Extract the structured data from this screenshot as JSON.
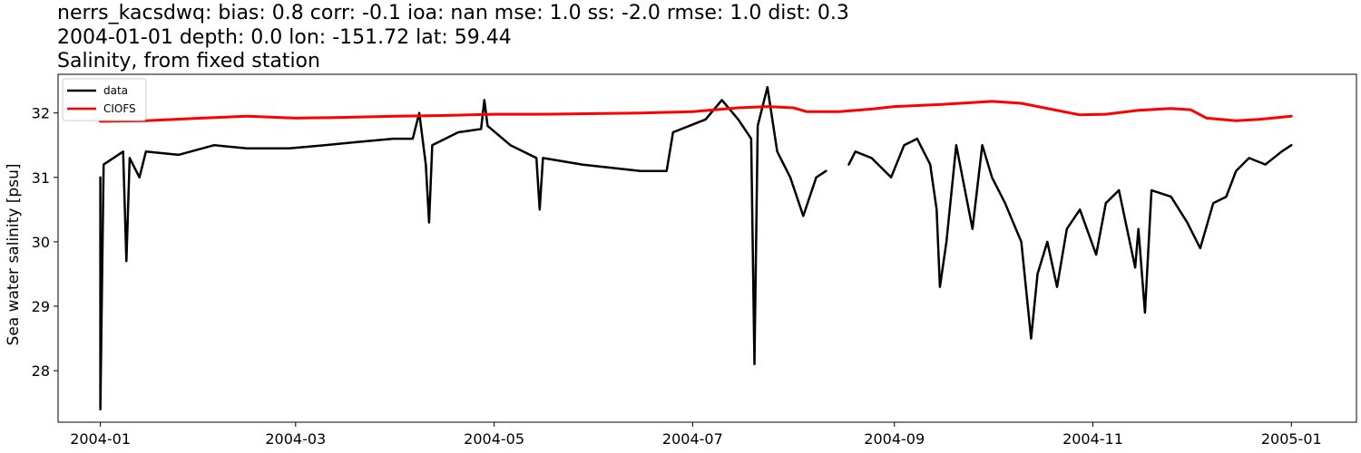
{
  "title_lines": [
    "nerrs_kacsdwq: bias: 0.8  corr: -0.1  ioa: nan  mse: 1.0  ss: -2.0  rmse: 1.0  dist: 0.3",
    "2004-01-01 depth: 0.0 lon: -151.72 lat: 59.44",
    "Salinity, from fixed station"
  ],
  "chart_data": {
    "type": "line",
    "title": "nerrs_kacsdwq: bias: 0.8  corr: -0.1  ioa: nan  mse: 1.0  ss: -2.0  rmse: 1.0  dist: 0.3\n2004-01-01 depth: 0.0 lon: -151.72 lat: 59.44\nSalinity, from fixed station",
    "xlabel": "",
    "ylabel": "Sea water salinity [psu]",
    "xlim": [
      "2003-12-19",
      "2005-01-21"
    ],
    "ylim": [
      27.2,
      32.6
    ],
    "x_ticks": [
      "2004-01",
      "2004-03",
      "2004-05",
      "2004-07",
      "2004-09",
      "2004-11",
      "2005-01"
    ],
    "y_ticks": [
      28,
      29,
      30,
      31,
      32
    ],
    "grid": false,
    "legend_position": "upper-left",
    "series": [
      {
        "name": "data",
        "color": "#000000",
        "points": [
          [
            "2004-01-01",
            31.0
          ],
          [
            "2004-01-01",
            27.4
          ],
          [
            "2004-01-02",
            31.2
          ],
          [
            "2004-01-05",
            31.3
          ],
          [
            "2004-01-08",
            31.4
          ],
          [
            "2004-01-09",
            29.7
          ],
          [
            "2004-01-10",
            31.3
          ],
          [
            "2004-01-13",
            31.0
          ],
          [
            "2004-01-15",
            31.4
          ],
          [
            "2004-01-25",
            31.35
          ],
          [
            "2004-02-05",
            31.5
          ],
          [
            "2004-02-15",
            31.45
          ],
          [
            "2004-02-28",
            31.45
          ],
          [
            "2004-03-10",
            31.5
          ],
          [
            "2004-03-20",
            31.55
          ],
          [
            "2004-03-31",
            31.6
          ],
          [
            "2004-04-06",
            31.6
          ],
          [
            "2004-04-08",
            32.0
          ],
          [
            "2004-04-10",
            31.2
          ],
          [
            "2004-04-11",
            30.3
          ],
          [
            "2004-04-12",
            31.5
          ],
          [
            "2004-04-20",
            31.7
          ],
          [
            "2004-04-27",
            31.75
          ],
          [
            "2004-04-28",
            32.2
          ],
          [
            "2004-04-29",
            31.8
          ],
          [
            "2004-05-06",
            31.5
          ],
          [
            "2004-05-14",
            31.3
          ],
          [
            "2004-05-15",
            30.5
          ],
          [
            "2004-05-16",
            31.3
          ],
          [
            "2004-05-28",
            31.2
          ],
          [
            "2004-06-15",
            31.1
          ],
          [
            "2004-06-23",
            31.1
          ],
          [
            "2004-06-25",
            31.7
          ],
          [
            "2004-07-05",
            31.9
          ],
          [
            "2004-07-10",
            32.2
          ],
          [
            "2004-07-15",
            31.9
          ],
          [
            "2004-07-19",
            31.6
          ],
          [
            "2004-07-20",
            28.1
          ],
          [
            "2004-07-21",
            31.8
          ],
          [
            "2004-07-24",
            32.4
          ],
          [
            "2004-07-27",
            31.4
          ],
          [
            "2004-07-31",
            31.0
          ],
          [
            "2004-08-04",
            30.4
          ],
          [
            "2004-08-08",
            31.0
          ],
          [
            "2004-08-11",
            31.1
          ],
          null,
          [
            "2004-08-18",
            31.2
          ],
          [
            "2004-08-20",
            31.4
          ],
          [
            "2004-08-25",
            31.3
          ],
          [
            "2004-08-31",
            31.0
          ],
          [
            "2004-09-04",
            31.5
          ],
          [
            "2004-09-08",
            31.6
          ],
          [
            "2004-09-12",
            31.2
          ],
          [
            "2004-09-14",
            30.5
          ],
          [
            "2004-09-15",
            29.3
          ],
          [
            "2004-09-17",
            30.0
          ],
          [
            "2004-09-20",
            31.5
          ],
          [
            "2004-09-25",
            30.2
          ],
          [
            "2004-09-28",
            31.5
          ],
          [
            "2004-10-01",
            31.0
          ],
          [
            "2004-10-05",
            30.6
          ],
          [
            "2004-10-10",
            30.0
          ],
          [
            "2004-10-13",
            28.5
          ],
          [
            "2004-10-15",
            29.5
          ],
          [
            "2004-10-18",
            30.0
          ],
          [
            "2004-10-21",
            29.3
          ],
          [
            "2004-10-24",
            30.2
          ],
          [
            "2004-10-28",
            30.5
          ],
          [
            "2004-11-02",
            29.8
          ],
          [
            "2004-11-05",
            30.6
          ],
          [
            "2004-11-09",
            30.8
          ],
          [
            "2004-11-14",
            29.6
          ],
          [
            "2004-11-15",
            30.2
          ],
          [
            "2004-11-17",
            28.9
          ],
          [
            "2004-11-19",
            30.8
          ],
          [
            "2004-11-25",
            30.7
          ],
          [
            "2004-11-30",
            30.3
          ],
          [
            "2004-12-04",
            29.9
          ],
          [
            "2004-12-08",
            30.6
          ],
          [
            "2004-12-12",
            30.7
          ],
          [
            "2004-12-15",
            31.1
          ],
          [
            "2004-12-19",
            31.3
          ],
          [
            "2004-12-24",
            31.2
          ],
          [
            "2004-12-29",
            31.4
          ],
          [
            "2005-01-01",
            31.5
          ]
        ]
      },
      {
        "name": "CIOFS",
        "color": "#ff0000",
        "points": [
          [
            "2004-01-01",
            31.87
          ],
          [
            "2004-01-15",
            31.88
          ],
          [
            "2004-02-01",
            31.92
          ],
          [
            "2004-02-15",
            31.95
          ],
          [
            "2004-03-01",
            31.92
          ],
          [
            "2004-03-15",
            31.93
          ],
          [
            "2004-04-01",
            31.95
          ],
          [
            "2004-04-15",
            31.96
          ],
          [
            "2004-05-01",
            31.98
          ],
          [
            "2004-05-15",
            31.98
          ],
          [
            "2004-06-01",
            31.99
          ],
          [
            "2004-06-15",
            32.0
          ],
          [
            "2004-07-01",
            32.02
          ],
          [
            "2004-07-15",
            32.08
          ],
          [
            "2004-07-24",
            32.1
          ],
          [
            "2004-08-01",
            32.08
          ],
          [
            "2004-08-05",
            32.02
          ],
          [
            "2004-08-15",
            32.02
          ],
          [
            "2004-08-25",
            32.06
          ],
          [
            "2004-09-01",
            32.1
          ],
          [
            "2004-09-15",
            32.13
          ],
          [
            "2004-10-01",
            32.18
          ],
          [
            "2004-10-10",
            32.15
          ],
          [
            "2004-10-20",
            32.05
          ],
          [
            "2004-10-28",
            31.97
          ],
          [
            "2004-11-05",
            31.98
          ],
          [
            "2004-11-15",
            32.04
          ],
          [
            "2004-11-25",
            32.07
          ],
          [
            "2004-12-01",
            32.05
          ],
          [
            "2004-12-06",
            31.92
          ],
          [
            "2004-12-15",
            31.88
          ],
          [
            "2004-12-22",
            31.9
          ],
          [
            "2005-01-01",
            31.95
          ]
        ]
      }
    ]
  }
}
